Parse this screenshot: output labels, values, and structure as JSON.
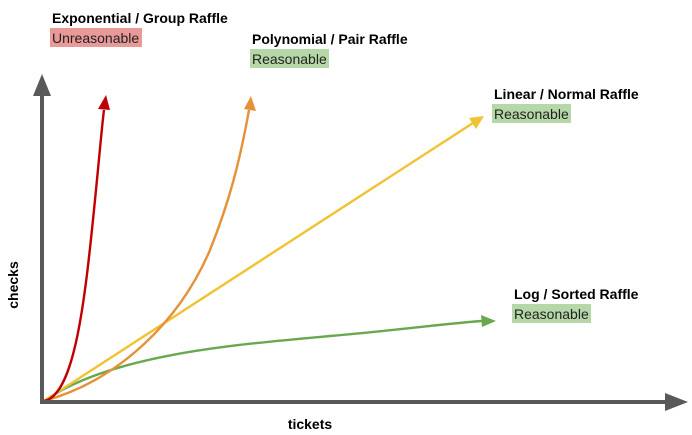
{
  "axes": {
    "x_label": "tickets",
    "y_label": "checks",
    "color": "#595959"
  },
  "curves": [
    {
      "key": "exponential",
      "title": "Exponential / Group Raffle",
      "verdict": "Unreasonable",
      "color": "#c00000",
      "badge_color": "#ea9999"
    },
    {
      "key": "polynomial",
      "title": "Polynomial / Pair Raffle",
      "verdict": "Reasonable",
      "color": "#e69138",
      "badge_color": "#b6d7a8"
    },
    {
      "key": "linear",
      "title": "Linear / Normal Raffle",
      "verdict": "Reasonable",
      "color": "#f1c232",
      "badge_color": "#b6d7a8"
    },
    {
      "key": "log",
      "title": "Log / Sorted Raffle",
      "verdict": "Reasonable",
      "color": "#6aa84f",
      "badge_color": "#b6d7a8"
    }
  ]
}
